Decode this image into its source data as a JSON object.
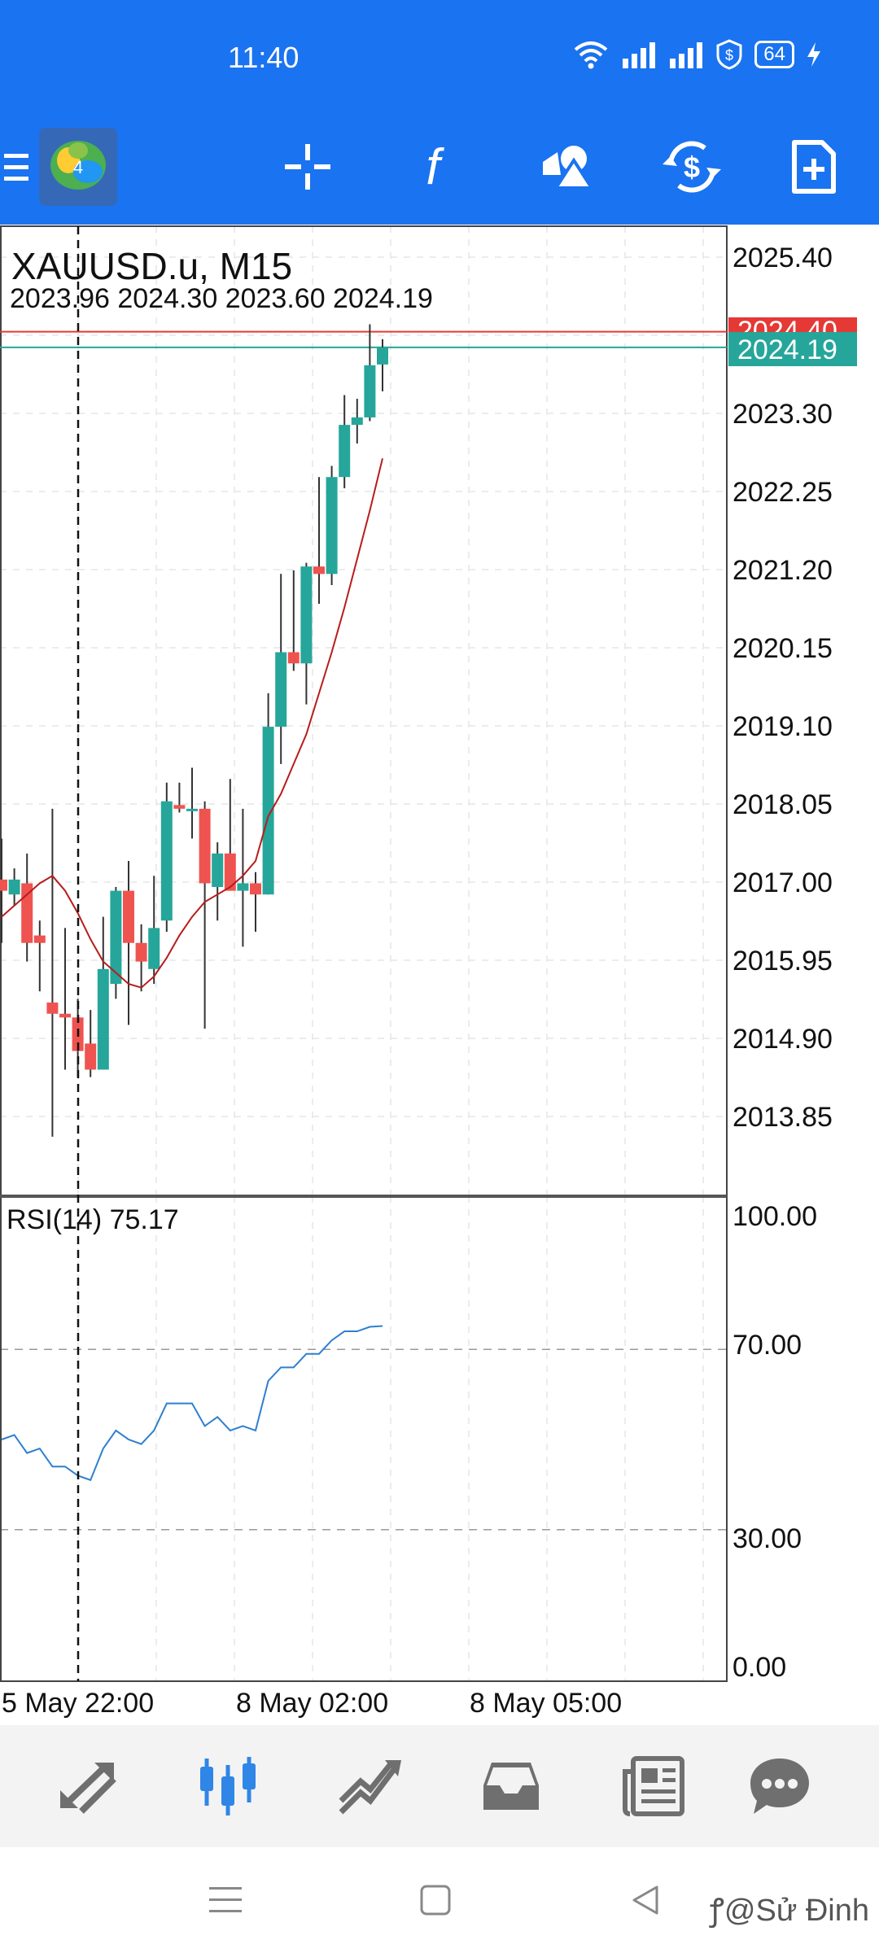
{
  "status": {
    "time": "11:40",
    "battery": "64"
  },
  "toolbar": {
    "items": [
      {
        "icon": "menu-icon"
      },
      {
        "icon": "metatrader-logo-icon"
      },
      {
        "icon": "crosshair-icon"
      },
      {
        "icon": "indicators-function-icon"
      },
      {
        "icon": "objects-shapes-icon"
      },
      {
        "icon": "trade-dollar-icon"
      },
      {
        "icon": "new-document-icon"
      }
    ]
  },
  "chart": {
    "symbol": "XAUUSD.u, M15",
    "ohlc": "2023.96 2024.30 2023.60 2024.19",
    "current_price": "2024.19",
    "high_price_tag": "2024.40",
    "price_axis": [
      "2025.40",
      "2023.30",
      "2022.25",
      "2021.20",
      "2020.15",
      "2019.10",
      "2018.05",
      "2017.00",
      "2015.95",
      "2014.90",
      "2013.85"
    ],
    "rsi_label": "RSI(14) 75.17",
    "rsi_axis": [
      "100.00",
      "70.00",
      "30.00",
      "0.00"
    ],
    "time_axis": [
      "5 May 22:00",
      "8 May 02:00",
      "8 May 05:00"
    ],
    "colors": {
      "bull": "#26a69a",
      "bear": "#ef5350",
      "ma": "#b71c1c",
      "rsi": "#2f7fd0",
      "accent": "#1a73f0"
    }
  },
  "chart_data": {
    "type": "candlestick",
    "candles": [
      {
        "o": 2017.05,
        "h": 2017.6,
        "l": 2016.2,
        "c": 2016.9
      },
      {
        "o": 2016.85,
        "h": 2017.2,
        "l": 2016.7,
        "c": 2017.05
      },
      {
        "o": 2017.0,
        "h": 2017.4,
        "l": 2015.95,
        "c": 2016.2
      },
      {
        "o": 2016.3,
        "h": 2016.5,
        "l": 2015.55,
        "c": 2016.2
      },
      {
        "o": 2015.4,
        "h": 2018.0,
        "l": 2013.6,
        "c": 2015.25
      },
      {
        "o": 2015.25,
        "h": 2016.4,
        "l": 2014.5,
        "c": 2015.2
      },
      {
        "o": 2015.2,
        "h": 2015.45,
        "l": 2014.4,
        "c": 2014.75
      },
      {
        "o": 2014.85,
        "h": 2015.3,
        "l": 2014.4,
        "c": 2014.5
      },
      {
        "o": 2014.5,
        "h": 2016.55,
        "l": 2014.5,
        "c": 2015.85
      },
      {
        "o": 2015.65,
        "h": 2016.95,
        "l": 2015.45,
        "c": 2016.9
      },
      {
        "o": 2016.9,
        "h": 2017.3,
        "l": 2015.1,
        "c": 2016.2
      },
      {
        "o": 2016.2,
        "h": 2016.45,
        "l": 2015.55,
        "c": 2015.95
      },
      {
        "o": 2015.85,
        "h": 2017.1,
        "l": 2015.65,
        "c": 2016.4
      },
      {
        "o": 2016.5,
        "h": 2018.35,
        "l": 2016.35,
        "c": 2018.1
      },
      {
        "o": 2018.05,
        "h": 2018.35,
        "l": 2017.95,
        "c": 2018.0
      },
      {
        "o": 2018.0,
        "h": 2018.55,
        "l": 2017.6,
        "c": 2018.0
      },
      {
        "o": 2018.0,
        "h": 2018.1,
        "l": 2015.05,
        "c": 2017.0
      },
      {
        "o": 2016.95,
        "h": 2017.55,
        "l": 2016.5,
        "c": 2017.4
      },
      {
        "o": 2017.4,
        "h": 2018.4,
        "l": 2016.9,
        "c": 2016.9
      },
      {
        "o": 2016.9,
        "h": 2018.0,
        "l": 2016.15,
        "c": 2017.0
      },
      {
        "o": 2017.0,
        "h": 2017.15,
        "l": 2016.35,
        "c": 2016.85
      },
      {
        "o": 2016.85,
        "h": 2019.55,
        "l": 2016.85,
        "c": 2019.1
      },
      {
        "o": 2019.1,
        "h": 2021.15,
        "l": 2018.6,
        "c": 2020.1
      },
      {
        "o": 2020.1,
        "h": 2021.2,
        "l": 2019.85,
        "c": 2019.95
      },
      {
        "o": 2019.95,
        "h": 2021.3,
        "l": 2019.4,
        "c": 2021.25
      },
      {
        "o": 2021.25,
        "h": 2022.45,
        "l": 2020.75,
        "c": 2021.15
      },
      {
        "o": 2021.15,
        "h": 2022.6,
        "l": 2021.0,
        "c": 2022.45
      },
      {
        "o": 2022.45,
        "h": 2023.55,
        "l": 2022.3,
        "c": 2023.15
      },
      {
        "o": 2023.15,
        "h": 2023.5,
        "l": 2022.9,
        "c": 2023.25
      },
      {
        "o": 2023.25,
        "h": 2024.5,
        "l": 2023.2,
        "c": 2023.95
      },
      {
        "o": 2023.96,
        "h": 2024.3,
        "l": 2023.6,
        "c": 2024.19
      }
    ],
    "ma": [
      2016.55,
      2016.7,
      2016.85,
      2017.0,
      2017.1,
      2016.9,
      2016.6,
      2016.25,
      2015.95,
      2015.8,
      2015.65,
      2015.6,
      2015.75,
      2016.0,
      2016.3,
      2016.55,
      2016.75,
      2016.85,
      2016.95,
      2017.1,
      2017.3,
      2017.9,
      2018.2,
      2018.6,
      2019.0,
      2019.55,
      2020.1,
      2020.7,
      2021.35,
      2022.0,
      2022.7
    ],
    "rsi": [
      50,
      51,
      47,
      48,
      44,
      44,
      42,
      41,
      48,
      52,
      50,
      49,
      52,
      58,
      58,
      58,
      53,
      55,
      52,
      53,
      52,
      63,
      66,
      66,
      69,
      69,
      72,
      74,
      74,
      75,
      75.17
    ],
    "rsi_levels": [
      70,
      30
    ],
    "ylim": [
      2013.2,
      2025.8
    ],
    "rsi_ylim": [
      0,
      100
    ]
  },
  "bottom_nav": {
    "items": [
      {
        "icon": "quotes-icon"
      },
      {
        "icon": "chart-candles-icon"
      },
      {
        "icon": "trade-icon"
      },
      {
        "icon": "history-inbox-icon"
      },
      {
        "icon": "news-icon"
      },
      {
        "icon": "messages-icon"
      }
    ]
  },
  "watermark": "ꝭ@Sử Đinh"
}
